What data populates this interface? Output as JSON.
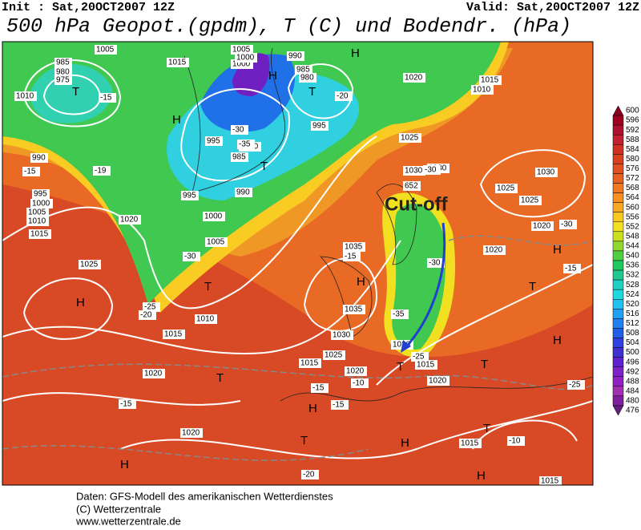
{
  "header": {
    "init": "Init : Sat,20OCT2007 12Z",
    "valid": "Valid: Sat,20OCT2007 12Z",
    "title": "500 hPa Geopot.(gpdm), T (C) und Bodendr. (hPa)"
  },
  "colorbar": {
    "labels": [
      "600",
      "596",
      "592",
      "588",
      "584",
      "580",
      "576",
      "572",
      "568",
      "564",
      "560",
      "556",
      "552",
      "548",
      "544",
      "540",
      "536",
      "532",
      "528",
      "524",
      "520",
      "516",
      "512",
      "508",
      "504",
      "500",
      "496",
      "492",
      "488",
      "484",
      "480",
      "476"
    ],
    "colors": [
      "#8b0020",
      "#a00020",
      "#b01030",
      "#c02030",
      "#d03020",
      "#d84020",
      "#e05020",
      "#e86020",
      "#f07820",
      "#f89020",
      "#f8a820",
      "#f8c820",
      "#f0e020",
      "#c8e020",
      "#90d830",
      "#50d040",
      "#20c860",
      "#20c890",
      "#20d0c0",
      "#20d8e0",
      "#20c0f0",
      "#20a0f0",
      "#2080f0",
      "#2060e8",
      "#3040e0",
      "#4030d0",
      "#6020d0",
      "#8020c8",
      "#9020c0",
      "#a030b0",
      "#8020a0",
      "#602080"
    ]
  },
  "annotation": "Cut-off",
  "map_labels": [
    "985",
    "980",
    "975",
    "T",
    "-15",
    "1005",
    "1015",
    "1000",
    "H",
    "1010",
    "1005",
    "1000",
    "990",
    "985",
    "980",
    "T",
    "-20",
    "995",
    "1000",
    "985",
    "995",
    "T",
    "-35",
    "H",
    "-30",
    "990",
    "995",
    "1000",
    "1005",
    "-30",
    "-25",
    "-20",
    "1010",
    "1015",
    "T",
    "990",
    "-15",
    "-19",
    "995",
    "1000",
    "1005",
    "1010",
    "1015",
    "1020",
    "1025",
    "H",
    "1020",
    "1025",
    "1030",
    "1035",
    "H",
    "-15",
    "1035",
    "1030",
    "1025",
    "1020",
    "T",
    "-25",
    "-35",
    "-30",
    "652",
    "1030",
    "-30",
    "1025",
    "1020",
    "1015",
    "1010",
    "H",
    "1030",
    "1025",
    "1020",
    "H",
    "T",
    "-15",
    "H",
    "T",
    "1015",
    "-15",
    "1020",
    "-10",
    "T",
    "-15",
    "1020",
    "H",
    "-15",
    "1020",
    "T",
    "H",
    "-15",
    "H",
    "1015",
    "-10",
    "T",
    "H",
    "1015",
    "-20",
    "-25",
    "1020",
    "1015",
    "-30"
  ],
  "footer": [
    "Daten: GFS-Modell des amerikanischen Wetterdienstes",
    "(C) Wetterzentrale",
    "www.wetterzentrale.de"
  ]
}
